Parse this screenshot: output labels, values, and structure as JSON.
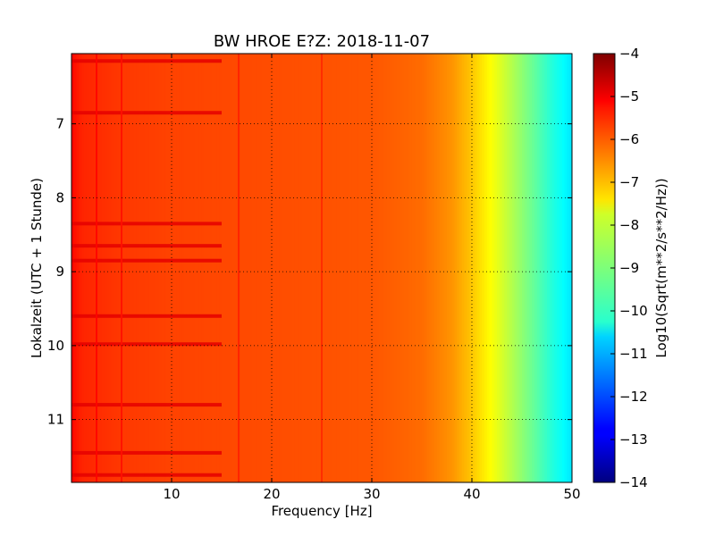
{
  "chart_data": {
    "type": "heatmap",
    "title": "BW HROE E?Z: 2018-11-07",
    "xlabel": "Frequency [Hz]",
    "ylabel": "Lokalzeit (UTC + 1 Stunde)",
    "xlim": [
      0,
      50
    ],
    "ylim": [
      6.05,
      11.85
    ],
    "y_inverted": true,
    "x_ticks": [
      10,
      20,
      30,
      40,
      50
    ],
    "x_tick_labels": [
      "10",
      "20",
      "30",
      "40",
      "50"
    ],
    "y_ticks": [
      7,
      8,
      9,
      10,
      11
    ],
    "y_tick_labels": [
      "7",
      "8",
      "9",
      "10",
      "11"
    ],
    "grid": true,
    "colormap": "jet",
    "colorbar": {
      "label": "Log10(Sqrt(m**2/s**2/Hz))",
      "range": [
        -14,
        -4
      ],
      "ticks": [
        -4,
        -5,
        -6,
        -7,
        -8,
        -9,
        -10,
        -11,
        -12,
        -13,
        -14
      ],
      "tick_labels": [
        "−4",
        "−5",
        "−6",
        "−7",
        "−8",
        "−9",
        "−10",
        "−11",
        "−12",
        "−13",
        "−14"
      ]
    },
    "spectral_profile": {
      "frequency_hz": [
        0,
        1,
        5,
        10,
        20,
        30,
        35,
        38,
        40,
        42,
        44,
        46,
        48,
        50
      ],
      "log10_amplitude": [
        -5.3,
        -5.6,
        -5.8,
        -5.9,
        -6.0,
        -6.1,
        -6.3,
        -6.7,
        -7.2,
        -7.8,
        -8.5,
        -9.2,
        -9.9,
        -10.5
      ]
    },
    "narrowband_lines_hz": [
      2.5,
      5,
      16.7,
      25
    ],
    "time_bands_hour": [
      6.15,
      6.85,
      8.35,
      8.65,
      8.85,
      9.6,
      9.98,
      10.8,
      11.45,
      11.75
    ]
  }
}
